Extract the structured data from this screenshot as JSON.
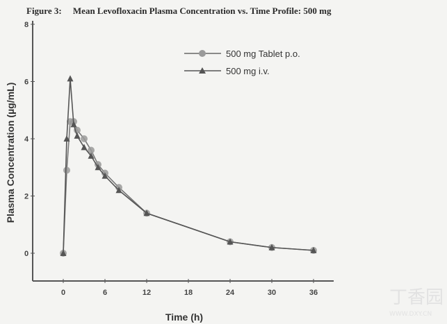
{
  "chart_data": {
    "type": "line",
    "title": "Figure 3:     Mean Levofloxacin Plasma Concentration vs. Time Profile: 500 mg",
    "xlabel": "Time (h)",
    "ylabel": "Plasma Concentration (µg/mL)",
    "xlim": [
      -4.4,
      39
    ],
    "ylim": [
      -1,
      8
    ],
    "xticks": [
      0,
      6,
      12,
      18,
      24,
      30,
      36
    ],
    "yticks": [
      0,
      2,
      4,
      6,
      8
    ],
    "grid": false,
    "legend_position": "top-center",
    "series": [
      {
        "name": "500 mg Tablet p.o.",
        "marker": "circle",
        "color": "#8a8a8a",
        "x": [
          0,
          0.5,
          1,
          1.5,
          2,
          3,
          4,
          5,
          6,
          8,
          12,
          24,
          30,
          36
        ],
        "y": [
          0,
          2.9,
          4.6,
          4.6,
          4.3,
          4.0,
          3.6,
          3.1,
          2.8,
          2.3,
          1.4,
          0.4,
          0.2,
          0.1
        ]
      },
      {
        "name": "500 mg i.v.",
        "marker": "triangle",
        "color": "#555555",
        "x": [
          0,
          0.5,
          1,
          1.5,
          2,
          3,
          4,
          5,
          6,
          8,
          12,
          24,
          30,
          36
        ],
        "y": [
          0,
          4.0,
          6.1,
          4.5,
          4.1,
          3.7,
          3.4,
          3.0,
          2.7,
          2.2,
          1.4,
          0.4,
          0.2,
          0.1
        ]
      }
    ]
  },
  "watermark": {
    "logo": "丁香园",
    "url": "WWW.DXY.CN"
  }
}
